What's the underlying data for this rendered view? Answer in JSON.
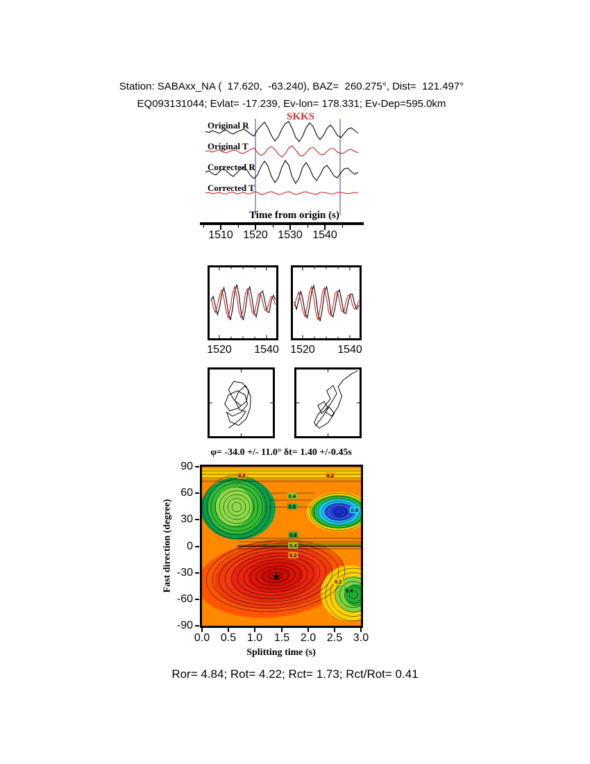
{
  "header": {
    "line1": "Station: SABAxx_NA (  17.620,  -63.240), BAZ=  260.275°, Dist=  121.497°",
    "line2": "EQ093131044; Evlat= -17.239, Ev-lon= 178.331; Ev-Dep=595.0km"
  },
  "waveforms": {
    "phase": "SKKS",
    "trace_labels": [
      "Original R",
      "Original T",
      "Corrected R",
      "Corrected T"
    ],
    "xlabel": "Time from origin (s)",
    "xticks": [
      "1510",
      "1520",
      "1530",
      "1540"
    ]
  },
  "small_panels": {
    "xticks": [
      "1520",
      "1540",
      "1520",
      "1540"
    ]
  },
  "contour": {
    "title": "φ= -34.0 +/- 11.0° δt= 1.40 +/-0.45s",
    "xlabel": "Splitting time (s)",
    "ylabel": "Fast direction (degree)",
    "xticks": [
      "0.0",
      "0.5",
      "1.0",
      "1.5",
      "2.0",
      "2.5",
      "3.0"
    ],
    "yticks": [
      "90",
      "60",
      "30",
      "0",
      "-30",
      "-60",
      "-90"
    ]
  },
  "footer": "Ror= 4.84; Rot= 4.22; Rct= 1.73; Rct/Rot= 0.41",
  "colors": {
    "trace_red": "#cc2020",
    "window_line_blue": "#5b5bb8",
    "phase_red": "#cc3333"
  },
  "chart_data": [
    {
      "type": "line",
      "xlabel": "Time from origin (s)",
      "x_range": [
        1505.6,
        1550.4
      ],
      "xticks": [
        1510,
        1520,
        1530,
        1540
      ],
      "minor_ticks": [
        1505,
        1515,
        1525,
        1535,
        1545
      ],
      "window": [
        1520,
        1544.4
      ],
      "series": [
        {
          "name": "Original R",
          "color": "#000000",
          "values": [
            1,
            -1,
            2,
            0,
            -2,
            1,
            3,
            -1,
            -3,
            0,
            2,
            4,
            1,
            -3,
            -6,
            3,
            9,
            14,
            6,
            -5,
            -13,
            -7,
            4,
            12,
            15,
            5,
            -8,
            -14,
            -6,
            6,
            13,
            8,
            -4,
            -11,
            -5,
            5,
            10,
            4,
            -5,
            -8,
            -2,
            4,
            6,
            2,
            -2
          ]
        },
        {
          "name": "Original T",
          "color": "#cc2020",
          "values": [
            0,
            1,
            -1,
            1,
            2,
            -1,
            -2,
            0,
            2,
            1,
            -2,
            -3,
            0,
            3,
            5,
            -2,
            -6,
            -3,
            4,
            7,
            3,
            -4,
            -8,
            -3,
            5,
            8,
            2,
            -5,
            -7,
            -2,
            4,
            6,
            1,
            -4,
            -5,
            0,
            4,
            4,
            -1,
            -3,
            -2,
            2,
            3,
            0,
            -2
          ]
        },
        {
          "name": "Corrected R",
          "color": "#000000",
          "values": [
            0,
            2,
            -2,
            -4,
            1,
            5,
            2,
            -3,
            -6,
            -1,
            4,
            7,
            3,
            -5,
            -9,
            -4,
            8,
            16,
            9,
            -6,
            -15,
            -8,
            7,
            17,
            10,
            -7,
            -16,
            -8,
            7,
            14,
            6,
            -6,
            -12,
            -4,
            6,
            10,
            3,
            -5,
            -8,
            -1,
            5,
            6,
            1,
            -3,
            0
          ]
        },
        {
          "name": "Corrected T",
          "color": "#cc2020",
          "values": [
            0,
            1,
            -1,
            0,
            1,
            -1,
            -1,
            1,
            1,
            -1,
            0,
            1,
            -1,
            -1,
            2,
            1,
            -2,
            -1,
            1,
            2,
            0,
            -2,
            -1,
            1,
            2,
            0,
            -2,
            -1,
            1,
            2,
            0,
            -1,
            -2,
            1,
            1,
            0,
            -1,
            -1,
            1,
            1,
            0,
            -1,
            0,
            1,
            0
          ]
        }
      ]
    },
    {
      "type": "line",
      "xticks": [
        1520,
        1540
      ],
      "series": [
        {
          "name": "R",
          "color": "#000000",
          "values": [
            2,
            6,
            -3,
            -11,
            -4,
            8,
            14,
            5,
            -9,
            -16,
            -6,
            10,
            17,
            7,
            -9,
            -16,
            -6,
            10,
            15,
            5,
            -9,
            -13,
            -3,
            9,
            11,
            2,
            -8,
            -9,
            2,
            7,
            3
          ]
        },
        {
          "name": "T",
          "color": "#cc2020",
          "values": [
            4,
            -4,
            -9,
            -2,
            7,
            12,
            4,
            -8,
            -14,
            -5,
            9,
            15,
            6,
            -8,
            -14,
            -5,
            9,
            13,
            4,
            -8,
            -11,
            -2,
            8,
            9,
            1,
            -7,
            -7,
            1,
            6,
            4,
            -2
          ]
        }
      ]
    },
    {
      "type": "line",
      "xticks": [
        1520,
        1540
      ],
      "series": [
        {
          "name": "R",
          "color": "#000000",
          "values": [
            1,
            -6,
            2,
            11,
            3,
            -9,
            -14,
            -4,
            10,
            16,
            6,
            -10,
            -17,
            -6,
            10,
            15,
            5,
            -10,
            -13,
            -4,
            9,
            12,
            2,
            -9,
            -10,
            0,
            8,
            8,
            -1,
            -6,
            -2
          ]
        },
        {
          "name": "T",
          "color": "#cc2020",
          "values": [
            -3,
            4,
            10,
            2,
            -8,
            -13,
            -3,
            9,
            15,
            5,
            -9,
            -16,
            -5,
            9,
            14,
            4,
            -9,
            -12,
            -3,
            9,
            11,
            1,
            -8,
            -9,
            1,
            7,
            7,
            -2,
            -6,
            -3,
            2
          ]
        }
      ]
    },
    {
      "type": "line",
      "points": [
        [
          50,
          55
        ],
        [
          38,
          45
        ],
        [
          30,
          30
        ],
        [
          38,
          18
        ],
        [
          52,
          20
        ],
        [
          62,
          32
        ],
        [
          58,
          48
        ],
        [
          45,
          58
        ],
        [
          32,
          62
        ],
        [
          24,
          52
        ],
        [
          30,
          38
        ],
        [
          44,
          32
        ],
        [
          56,
          38
        ],
        [
          60,
          52
        ],
        [
          50,
          64
        ],
        [
          36,
          70
        ],
        [
          27,
          64
        ],
        [
          32,
          78
        ],
        [
          46,
          84
        ],
        [
          58,
          74
        ],
        [
          64,
          58
        ],
        [
          65,
          40
        ],
        [
          57,
          24
        ],
        [
          46,
          33
        ],
        [
          40,
          46
        ],
        [
          47,
          60
        ],
        [
          57,
          63
        ],
        [
          50,
          73
        ],
        [
          39,
          82
        ],
        [
          30,
          88
        ]
      ]
    },
    {
      "type": "line",
      "points": [
        [
          30,
          85
        ],
        [
          42,
          70
        ],
        [
          50,
          58
        ],
        [
          44,
          48
        ],
        [
          34,
          54
        ],
        [
          40,
          66
        ],
        [
          54,
          52
        ],
        [
          64,
          36
        ],
        [
          58,
          24
        ],
        [
          48,
          32
        ],
        [
          54,
          44
        ],
        [
          44,
          56
        ],
        [
          34,
          68
        ],
        [
          28,
          80
        ],
        [
          36,
          88
        ],
        [
          50,
          80
        ],
        [
          60,
          66
        ],
        [
          52,
          56
        ],
        [
          46,
          64
        ],
        [
          56,
          70
        ],
        [
          66,
          56
        ],
        [
          72,
          40
        ],
        [
          66,
          26
        ],
        [
          74,
          16
        ],
        [
          88,
          6
        ],
        [
          97,
          2
        ]
      ]
    },
    {
      "type": "heatmap",
      "title": "φ= -34.0 +/- 11.0° δt= 1.40 +/-0.45s",
      "xlabel": "Splitting time (s)",
      "ylabel": "Fast direction (degree)",
      "xlim": [
        0,
        3
      ],
      "ylim": [
        -90,
        90
      ],
      "xticks": [
        0.0,
        0.5,
        1.0,
        1.5,
        2.0,
        2.5,
        3.0
      ],
      "yticks": [
        90,
        60,
        30,
        0,
        -30,
        -60,
        -90
      ],
      "result": {
        "phi_deg": -34.0,
        "phi_err_deg": 11.0,
        "dt_s": 1.4,
        "dt_err_s": 0.45
      },
      "star": {
        "dt": 1.4,
        "phi": -34
      },
      "contour_labels": [
        {
          "text": "0.2",
          "dt": 0.75,
          "phi": 80,
          "bg": "#ff9900"
        },
        {
          "text": "0.2",
          "dt": 2.42,
          "phi": 80,
          "bg": "#ff9900"
        },
        {
          "text": "0.4",
          "dt": 1.7,
          "phi": 57,
          "bg": "#77cc33"
        },
        {
          "text": "0.6",
          "dt": 1.7,
          "phi": 45,
          "bg": "#33aa44"
        },
        {
          "text": "0.8",
          "dt": 2.88,
          "phi": 41,
          "bg": "#33ccff"
        },
        {
          "text": "0.6",
          "dt": 1.72,
          "phi": 13,
          "bg": "#33aa44"
        },
        {
          "text": "0.4",
          "dt": 1.72,
          "phi": 1,
          "bg": "#aacc22"
        },
        {
          "text": "0.2",
          "dt": 1.72,
          "phi": -10,
          "bg": "#ff9900"
        },
        {
          "text": "0.2",
          "dt": 2.57,
          "phi": -40,
          "bg": "#ffd000"
        },
        {
          "text": "0.4",
          "dt": 2.78,
          "phi": -50,
          "bg": "#22aa33"
        }
      ]
    }
  ]
}
